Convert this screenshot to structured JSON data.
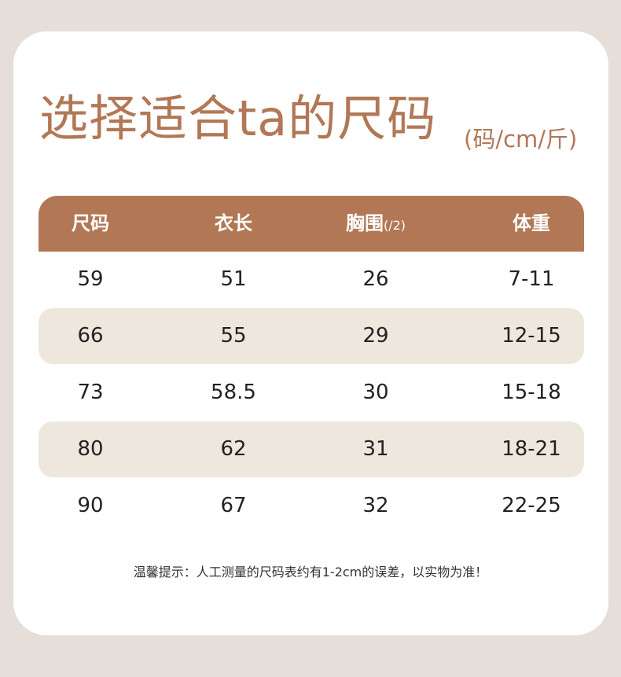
{
  "title": "选择适合ta的尺码",
  "unit": "(码/cm/斤)",
  "headers": [
    "尺码",
    "衣长",
    "胸围",
    "体重"
  ],
  "header_suffix": "(/2)",
  "rows": [
    [
      "59",
      "51",
      "26",
      "7-11"
    ],
    [
      "66",
      "55",
      "29",
      "12-15"
    ],
    [
      "73",
      "58.5",
      "30",
      "15-18"
    ],
    [
      "80",
      "62",
      "31",
      "18-21"
    ],
    [
      "90",
      "67",
      "32",
      "22-25"
    ]
  ],
  "note": "温馨提示：人工测量的尺码表约有1-2cm的误差，以实物为准！",
  "colors": {
    "accent": "#b27856",
    "stripe": "#ede7dd"
  }
}
